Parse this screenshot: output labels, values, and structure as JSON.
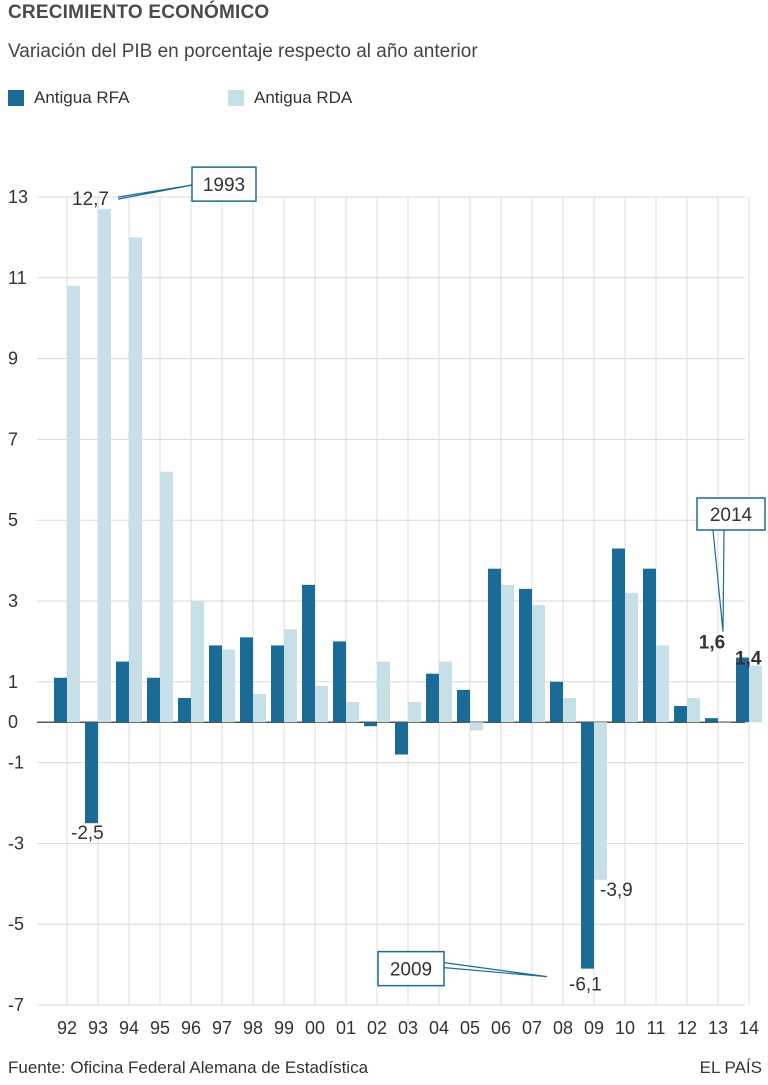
{
  "header": {
    "title": "CRECIMIENTO ECONÓMICO",
    "subtitle": "Variación del PIB  en porcentaje respecto al año anterior"
  },
  "legend": {
    "items": [
      {
        "label": "Antigua RFA",
        "color": "#1a6b96"
      },
      {
        "label": "Antigua RDA",
        "color": "#c7e0e8"
      }
    ]
  },
  "footer": {
    "source": "Fuente: Oficina Federal Alemana de Estadística",
    "brand": "EL PAÍS"
  },
  "chart_data": {
    "type": "bar",
    "categories": [
      "92",
      "93",
      "94",
      "95",
      "96",
      "97",
      "98",
      "99",
      "00",
      "01",
      "02",
      "03",
      "04",
      "05",
      "06",
      "07",
      "08",
      "09",
      "10",
      "11",
      "12",
      "13",
      "14"
    ],
    "series": [
      {
        "name": "Antigua RFA",
        "color": "#1a6b96",
        "values": [
          1.1,
          -2.5,
          1.5,
          1.1,
          0.6,
          1.9,
          2.1,
          1.9,
          3.4,
          2.0,
          -0.1,
          -0.8,
          1.2,
          0.8,
          3.8,
          3.3,
          1.0,
          -6.1,
          4.3,
          3.8,
          0.4,
          0.1,
          1.6
        ]
      },
      {
        "name": "Antigua RDA",
        "color": "#c7e0e8",
        "values": [
          10.8,
          12.7,
          12.0,
          6.2,
          3.0,
          1.8,
          0.7,
          2.3,
          0.9,
          0.5,
          1.5,
          0.5,
          1.5,
          -0.2,
          3.4,
          2.9,
          0.6,
          -3.9,
          3.2,
          1.9,
          0.6,
          0.0,
          1.4
        ]
      }
    ],
    "yticks": [
      13,
      11,
      9,
      7,
      5,
      3,
      1,
      0,
      -1,
      -3,
      -5,
      -7
    ],
    "ytick_labels": [
      "13",
      "11",
      "9",
      "7",
      "5",
      "3",
      "1",
      "0",
      "-1",
      "-3",
      "-5",
      "-7"
    ],
    "ylim": [
      -7,
      13
    ],
    "grid": true,
    "annotations": {
      "callouts": [
        {
          "label": "1993",
          "value_label": "12,7",
          "category": "93",
          "series": 1
        },
        {
          "label": "2009",
          "value_label": "-6,1",
          "category": "09",
          "series": 0
        },
        {
          "label": "2014",
          "value_label": "1,6",
          "category": "14",
          "series": 0
        }
      ],
      "value_labels": [
        {
          "text": "-2,5",
          "category": "93",
          "series": 0
        },
        {
          "text": "-3,9",
          "category": "09",
          "series": 1
        },
        {
          "text": "1,4",
          "category": "14",
          "series": 1
        }
      ]
    }
  }
}
